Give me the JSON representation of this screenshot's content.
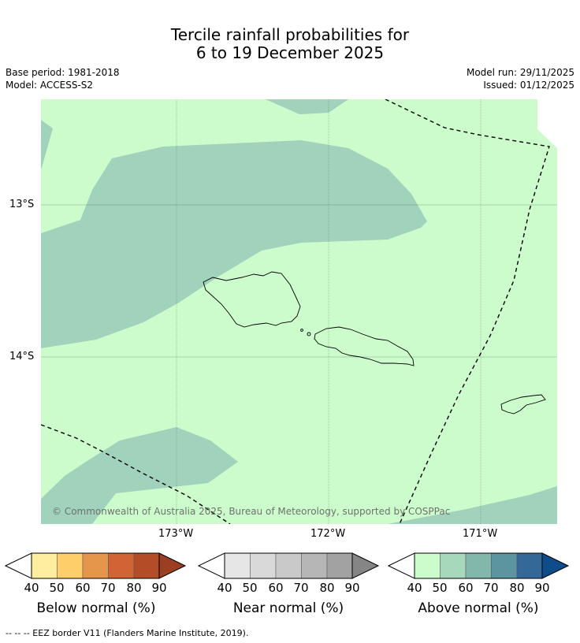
{
  "title": {
    "line1": "Tercile rainfall probabilities for",
    "line2": "6 to 19 December 2025"
  },
  "meta": {
    "base_period": "Base period: 1981-2018",
    "model": "Model: ACCESS-S2",
    "model_run": "Model run: 29/11/2025",
    "issued": "Issued: 01/12/2025"
  },
  "map": {
    "lat_labels": [
      "13°S",
      "14°S"
    ],
    "lon_labels": [
      "173°W",
      "172°W",
      "171°W"
    ],
    "copyright": "© Commonwealth of Australia 2025, Bureau of Meteorology, supported by COSPPac",
    "colors": {
      "above_40_50": "#ccfccc",
      "above_50_60": "#a0d2bc",
      "land_outline": "#000000"
    }
  },
  "colorbars": [
    {
      "title": "Below normal (%)",
      "ticks": [
        "40",
        "50",
        "60",
        "70",
        "80",
        "90"
      ],
      "colors": [
        "#ffeea0",
        "#fece69",
        "#e5964a",
        "#d06434",
        "#b54c28",
        "#9c3e22"
      ]
    },
    {
      "title": "Near normal (%)",
      "ticks": [
        "40",
        "50",
        "60",
        "70",
        "80",
        "90"
      ],
      "colors": [
        "#e6e6e6",
        "#d9d9d9",
        "#c9c9c9",
        "#b6b6b6",
        "#a2a2a2",
        "#858585"
      ]
    },
    {
      "title": "Above normal (%)",
      "ticks": [
        "40",
        "50",
        "60",
        "70",
        "80",
        "90"
      ],
      "colors": [
        "#ccfccc",
        "#a8d8bc",
        "#82b8ac",
        "#5c94a0",
        "#346898",
        "#0f4c8c"
      ]
    }
  ],
  "footer": "--  --  -- EEZ border V11 (Flanders Marine Institute, 2019)."
}
